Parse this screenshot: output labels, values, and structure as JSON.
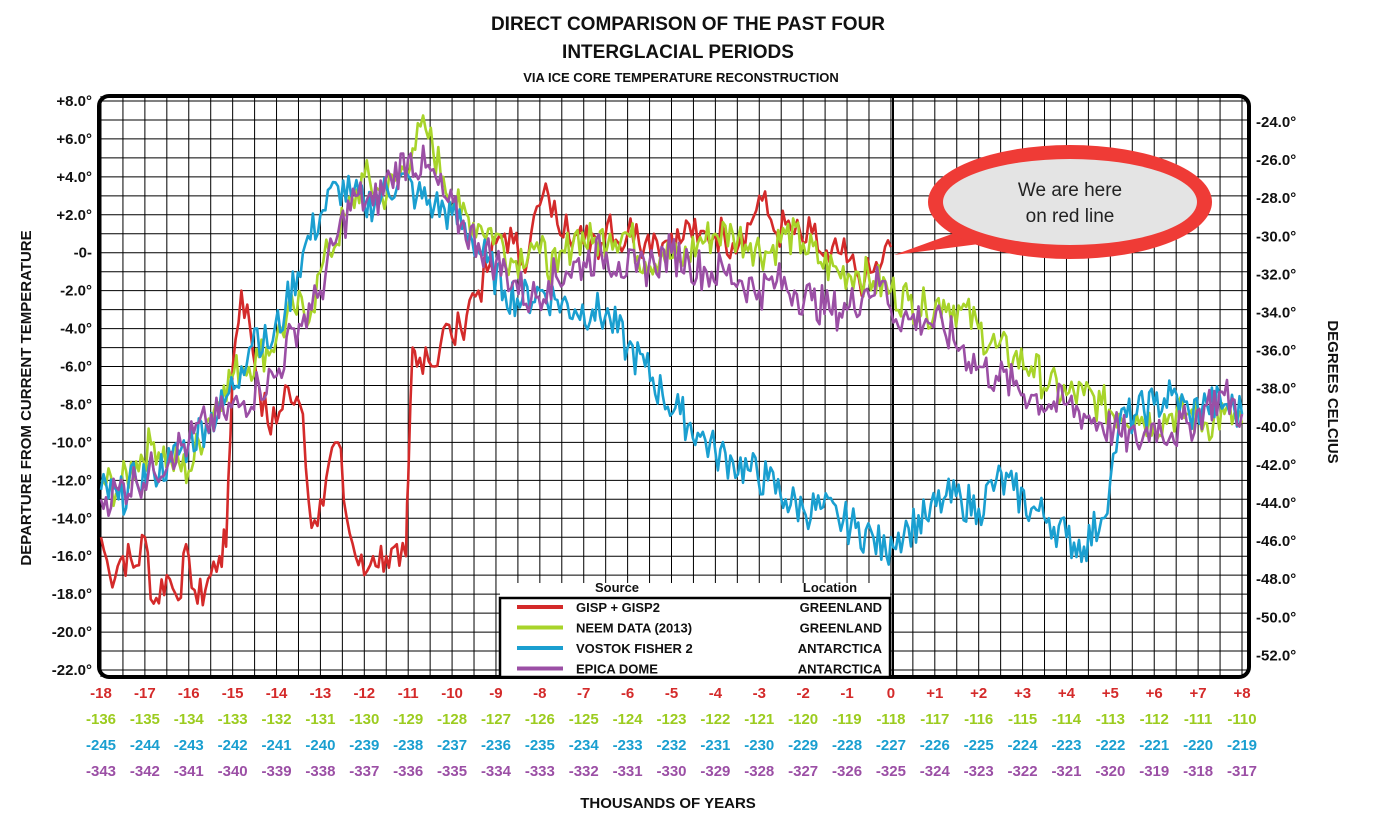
{
  "chart_data": {
    "type": "line",
    "title": "DIRECT COMPARISON OF THE PAST FOUR",
    "title_line2": "INTERGLACIAL PERIODS",
    "subtitle": "VIA ICE CORE TEMPERATURE RECONSTRUCTION",
    "ylabel": "DEPARTURE FROM CURRENT TEMPERATURE",
    "ylabel_right": "DEGREES CELCIUS",
    "xlabel": "THOUSANDS OF YEARS",
    "ylim": [
      -22,
      8
    ],
    "xlim": [
      -18,
      8
    ],
    "grid": true,
    "y_ticks": [
      "+8.0°",
      "+6.0°",
      "+4.0°",
      "+2.0°",
      "-0-",
      "-2.0°",
      "-4.0°",
      "-6.0°",
      "-8.0°",
      "-10.0°",
      "-12.0°",
      "-14.0°",
      "-16.0°",
      "-18.0°",
      "-20.0°",
      "-22.0°"
    ],
    "y_ticks_right": [
      "-24.0°",
      "-26.0°",
      "-28.0°",
      "-30.0°",
      "-32.0°",
      "-34.0°",
      "-36.0°",
      "-38.0°",
      "-40.0°",
      "-42.0°",
      "-44.0°",
      "-46.0°",
      "-48.0°",
      "-50.0°",
      "-52.0°"
    ],
    "x_tick_rows": [
      {
        "color": "#d42a2a",
        "labels": [
          "-18",
          "-17",
          "-16",
          "-15",
          "-14",
          "-13",
          "-12",
          "-11",
          "-10",
          "-9",
          "-8",
          "-7",
          "-6",
          "-5",
          "-4",
          "-3",
          "-2",
          "-1",
          "0",
          "+1",
          "+2",
          "+3",
          "+4",
          "+5",
          "+6",
          "+7",
          "+8"
        ]
      },
      {
        "color": "#9ccc1f",
        "labels": [
          "-136",
          "-135",
          "-134",
          "-133",
          "-132",
          "-131",
          "-130",
          "-129",
          "-128",
          "-127",
          "-126",
          "-125",
          "-124",
          "-123",
          "-122",
          "-121",
          "-120",
          "-119",
          "-118",
          "-117",
          "-116",
          "-115",
          "-114",
          "-113",
          "-112",
          "-111",
          "-110"
        ]
      },
      {
        "color": "#1a9fd0",
        "labels": [
          "-245",
          "-244",
          "-243",
          "-242",
          "-241",
          "-240",
          "-239",
          "-238",
          "-237",
          "-236",
          "-235",
          "-234",
          "-233",
          "-232",
          "-231",
          "-230",
          "-229",
          "-228",
          "-227",
          "-226",
          "-225",
          "-224",
          "-223",
          "-222",
          "-221",
          "-220",
          "-219"
        ]
      },
      {
        "color": "#9b4fa5",
        "labels": [
          "-343",
          "-342",
          "-341",
          "-340",
          "-339",
          "-338",
          "-337",
          "-336",
          "-335",
          "-334",
          "-333",
          "-332",
          "-331",
          "-330",
          "-329",
          "-328",
          "-327",
          "-326",
          "-325",
          "-324",
          "-323",
          "-322",
          "-321",
          "-320",
          "-319",
          "-318",
          "-317"
        ]
      }
    ],
    "legend": {
      "source_header": "Source",
      "location_header": "Location",
      "entries": [
        {
          "name": "GISP + GISP2",
          "location": "GREENLAND",
          "color": "#d42a2a"
        },
        {
          "name": "NEEM DATA (2013)",
          "location": "GREENLAND",
          "color": "#a8d42a"
        },
        {
          "name": "VOSTOK FISHER 2",
          "location": "ANTARCTICA",
          "color": "#1a9fd0"
        },
        {
          "name": "EPICA DOME",
          "location": "ANTARCTICA",
          "color": "#9b4fa5"
        }
      ]
    },
    "annotation": {
      "line1": "We are here",
      "line2": "on red line",
      "color": "#ef3b36"
    },
    "series": [
      {
        "name": "GISP + GISP2",
        "color": "#d42a2a",
        "x": [
          -18,
          -17.8,
          -17.5,
          -17.2,
          -17,
          -16.8,
          -16.5,
          -16.3,
          -16,
          -15.8,
          -15.5,
          -15.3,
          -15.15,
          -15.1,
          -15,
          -14.8,
          -14.6,
          -14.4,
          -14.2,
          -14,
          -13.8,
          -13.6,
          -13.4,
          -13.2,
          -13,
          -12.8,
          -12.6,
          -12.4,
          -12.2,
          -12,
          -11.8,
          -11.5,
          -11.2,
          -11.05,
          -11,
          -10.9,
          -10.8,
          -10.6,
          -10.4,
          -10.2,
          -10,
          -9.8,
          -9.6,
          -9.4,
          -9.2,
          -9,
          -8.8,
          -8.6,
          -8.4,
          -8.2,
          -8,
          -7.8,
          -7.6,
          -7.4,
          -7.2,
          -7,
          -6.8,
          -6.6,
          -6.4,
          -6.2,
          -6,
          -5.8,
          -5.6,
          -5.4,
          -5.2,
          -5,
          -4.8,
          -4.6,
          -4.4,
          -4.2,
          -4,
          -3.8,
          -3.6,
          -3.4,
          -3.2,
          -3,
          -2.8,
          -2.6,
          -2.4,
          -2.2,
          -2,
          -1.8,
          -1.6,
          -1.4,
          -1.2,
          -1,
          -0.8,
          -0.6,
          -0.4,
          -0.2,
          0
        ],
        "y": [
          -15,
          -17,
          -16,
          -16.5,
          -15,
          -18.5,
          -17,
          -18,
          -16,
          -18.5,
          -17,
          -16,
          -15.5,
          -12,
          -6,
          -2,
          -4,
          -7,
          -9,
          -9,
          -7,
          -8,
          -8.5,
          -14.5,
          -13,
          -11,
          -10,
          -14,
          -16,
          -17,
          -16,
          -16,
          -16.5,
          -16,
          -12,
          -5,
          -6,
          -5,
          -6,
          -4,
          -4.5,
          -4,
          -2.5,
          -2,
          -1,
          0.5,
          1,
          0.5,
          -0.5,
          1,
          2.5,
          3,
          1.5,
          2,
          1,
          0.5,
          1,
          0.5,
          2,
          0.5,
          1,
          1.5,
          0.5,
          1,
          0.5,
          1,
          0.5,
          1.5,
          0.5,
          1,
          1,
          1,
          0.5,
          1,
          1.5,
          3,
          2,
          1,
          1.5,
          1,
          0.5,
          1,
          0,
          -0.5,
          0,
          -0.5,
          -1,
          -1.5,
          -1,
          -0.5,
          0.3
        ]
      },
      {
        "name": "NEEM DATA (2013)",
        "color": "#a8d42a",
        "x": [
          -18,
          -17.6,
          -17.2,
          -16.8,
          -16.4,
          -16,
          -15.6,
          -15.2,
          -14.8,
          -14.4,
          -14,
          -13.6,
          -13.2,
          -13,
          -12.8,
          -12.4,
          -12,
          -11.6,
          -11.2,
          -10.9,
          -10.6,
          -10.2,
          -9.8,
          -9.4,
          -9,
          -8.6,
          -8.2,
          -8,
          -7.6,
          -7.2,
          -6.8,
          -6.4,
          -6,
          -5.6,
          -5.2,
          -4.8,
          -4.4,
          -4,
          -3.6,
          -3.2,
          -2.8,
          -2.4,
          -2,
          -1.6,
          -1.2,
          -0.8,
          -0.4,
          0,
          0.4,
          0.8,
          1.2,
          1.6,
          2,
          2.4,
          2.8,
          3.2,
          3.6,
          4,
          4.4,
          4.8,
          5.2,
          5.6,
          6,
          6.4,
          6.8,
          7.2,
          7.6,
          8
        ],
        "y": [
          -12,
          -12.5,
          -11,
          -10,
          -11,
          -11.5,
          -9,
          -7,
          -6,
          -5.5,
          -4.5,
          -3,
          -3,
          -1,
          0,
          2,
          4,
          3,
          4,
          5.5,
          6.5,
          4,
          2,
          1.5,
          1,
          -0.5,
          0.5,
          0,
          -1,
          1,
          0.5,
          1,
          1,
          -0.5,
          0,
          -0.5,
          0.5,
          1,
          1,
          0.5,
          0,
          1,
          0.5,
          -0.5,
          -1,
          -1,
          -1.5,
          -2,
          -2.5,
          -3,
          -2.5,
          -3,
          -4,
          -5,
          -5.5,
          -6,
          -7,
          -7.5,
          -7.5,
          -8,
          -8.5,
          -8.5,
          -9,
          -8.5,
          -8.5,
          -9,
          -8.5,
          -9
        ]
      },
      {
        "name": "VOSTOK FISHER 2",
        "color": "#1a9fd0",
        "x": [
          -18,
          -17.6,
          -17.2,
          -16.8,
          -16.4,
          -16,
          -15.6,
          -15.2,
          -14.8,
          -14.5,
          -14.2,
          -13.8,
          -13.4,
          -13,
          -12.6,
          -12.3,
          -12,
          -11.6,
          -11.2,
          -10.8,
          -10.4,
          -10,
          -9.6,
          -9.2,
          -8.8,
          -8.4,
          -8,
          -7.6,
          -7.2,
          -6.8,
          -6.4,
          -6,
          -5.6,
          -5.2,
          -4.8,
          -4.4,
          -4,
          -3.6,
          -3.2,
          -2.8,
          -2.4,
          -2,
          -1.6,
          -1.2,
          -0.8,
          -0.4,
          -0.1,
          0,
          0.4,
          0.8,
          1.2,
          1.6,
          2,
          2.4,
          2.8,
          3.2,
          3.6,
          4,
          4.4,
          4.8,
          5,
          5.2,
          5.6,
          6,
          6.4,
          6.8,
          7.2,
          7.6,
          8
        ],
        "y": [
          -12.5,
          -13,
          -12,
          -11.5,
          -11,
          -10,
          -9,
          -8,
          -6,
          -4,
          -5,
          -3,
          0,
          2,
          3.5,
          3,
          2.5,
          3,
          4,
          3,
          2.5,
          2,
          1,
          -0.5,
          -2,
          -2.5,
          -2,
          -2.5,
          -3,
          -3,
          -3.5,
          -5,
          -6,
          -7.5,
          -8.5,
          -9.5,
          -10.5,
          -11,
          -11.5,
          -12,
          -13,
          -13.5,
          -13.5,
          -14,
          -14.5,
          -15,
          -16,
          -15,
          -14.5,
          -14,
          -13,
          -13,
          -13.5,
          -12,
          -12.5,
          -13.5,
          -14,
          -15,
          -15.5,
          -14,
          -12,
          -9,
          -8.5,
          -8,
          -7.5,
          -8.5,
          -8,
          -8,
          -8.5
        ]
      },
      {
        "name": "EPICA DOME",
        "color": "#9b4fa5",
        "x": [
          -18,
          -17.6,
          -17.2,
          -16.8,
          -16.4,
          -16,
          -15.6,
          -15.2,
          -14.8,
          -14.4,
          -14,
          -13.6,
          -13.2,
          -13,
          -12.6,
          -12.2,
          -11.8,
          -11.4,
          -11,
          -10.6,
          -10.2,
          -9.8,
          -9.4,
          -9,
          -8.6,
          -8.2,
          -7.8,
          -7.4,
          -7,
          -6.6,
          -6.2,
          -5.8,
          -5.4,
          -5,
          -4.6,
          -4.2,
          -3.8,
          -3.4,
          -3,
          -2.6,
          -2.2,
          -1.8,
          -1.4,
          -1,
          -0.6,
          -0.2,
          0,
          0.4,
          0.8,
          1.2,
          1.6,
          2,
          2.4,
          2.8,
          3.2,
          3.6,
          4,
          4.4,
          4.8,
          5.2,
          5.6,
          6,
          6.4,
          6.8,
          7.2,
          7.6,
          8
        ],
        "y": [
          -13,
          -12.5,
          -12,
          -11.5,
          -10.5,
          -10,
          -9,
          -8.5,
          -8,
          -7,
          -6.5,
          -4,
          -3,
          -2,
          1,
          3,
          2.5,
          4,
          5,
          4.5,
          3,
          1.5,
          0.5,
          -0.5,
          -1.5,
          -2.5,
          -1.5,
          -1,
          -0.5,
          0,
          -0.5,
          -1,
          -0.5,
          0,
          -0.5,
          -1,
          -1,
          -1.5,
          -2,
          -1.5,
          -2,
          -2.5,
          -3,
          -3,
          -2,
          -1.5,
          -3,
          -3.5,
          -3.5,
          -4,
          -5,
          -6,
          -6.5,
          -7,
          -7.5,
          -8,
          -8,
          -8.5,
          -9,
          -9.5,
          -10,
          -9,
          -9.5,
          -9,
          -8,
          -7.5,
          -8.5
        ]
      }
    ]
  }
}
